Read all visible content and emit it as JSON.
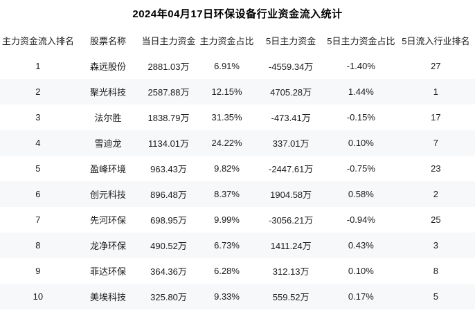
{
  "page": {
    "title": "2024年04月17日环保设备行业资金流入统计"
  },
  "colors": {
    "row_bg": "#ffffff",
    "stripe_row_bg": "#f7f8fa",
    "text": "#1a1a1a",
    "title_text": "#000000"
  },
  "chart_data": {
    "type": "table",
    "title": "2024年04月17日环保设备行业资金流入统计",
    "columns": [
      {
        "key": "rank",
        "label": "主力资金流入排名"
      },
      {
        "key": "name",
        "label": "股票名称"
      },
      {
        "key": "today_main",
        "label": "当日主力资金"
      },
      {
        "key": "main_ratio",
        "label": "主力资金占比"
      },
      {
        "key": "five_day_main",
        "label": "5日主力资金"
      },
      {
        "key": "five_day_ratio",
        "label": "5日主力资金占比"
      },
      {
        "key": "five_day_rank",
        "label": "5日流入行业排名"
      }
    ],
    "rows": [
      {
        "rank": "1",
        "name": "森远股份",
        "today_main": "2881.03万",
        "main_ratio": "6.91%",
        "five_day_main": "-4559.34万",
        "five_day_ratio": "-1.40%",
        "five_day_rank": "27"
      },
      {
        "rank": "2",
        "name": "聚光科技",
        "today_main": "2587.88万",
        "main_ratio": "12.15%",
        "five_day_main": "4705.28万",
        "five_day_ratio": "1.44%",
        "five_day_rank": "1"
      },
      {
        "rank": "3",
        "name": "法尔胜",
        "today_main": "1838.79万",
        "main_ratio": "31.35%",
        "five_day_main": "-473.41万",
        "five_day_ratio": "-0.15%",
        "five_day_rank": "17"
      },
      {
        "rank": "4",
        "name": "雪迪龙",
        "today_main": "1134.01万",
        "main_ratio": "24.22%",
        "five_day_main": "337.01万",
        "five_day_ratio": "0.10%",
        "five_day_rank": "7"
      },
      {
        "rank": "5",
        "name": "盈峰环境",
        "today_main": "963.43万",
        "main_ratio": "9.82%",
        "five_day_main": "-2447.61万",
        "five_day_ratio": "-0.75%",
        "five_day_rank": "23"
      },
      {
        "rank": "6",
        "name": "创元科技",
        "today_main": "896.48万",
        "main_ratio": "8.37%",
        "five_day_main": "1904.58万",
        "five_day_ratio": "0.58%",
        "five_day_rank": "2"
      },
      {
        "rank": "7",
        "name": "先河环保",
        "today_main": "698.95万",
        "main_ratio": "9.99%",
        "five_day_main": "-3056.21万",
        "five_day_ratio": "-0.94%",
        "five_day_rank": "25"
      },
      {
        "rank": "8",
        "name": "龙净环保",
        "today_main": "490.52万",
        "main_ratio": "6.73%",
        "five_day_main": "1411.24万",
        "five_day_ratio": "0.43%",
        "five_day_rank": "3"
      },
      {
        "rank": "9",
        "name": "菲达环保",
        "today_main": "364.36万",
        "main_ratio": "6.28%",
        "five_day_main": "312.13万",
        "five_day_ratio": "0.10%",
        "five_day_rank": "8"
      },
      {
        "rank": "10",
        "name": "美埃科技",
        "today_main": "325.80万",
        "main_ratio": "9.33%",
        "five_day_main": "559.52万",
        "five_day_ratio": "0.17%",
        "five_day_rank": "5"
      }
    ]
  }
}
